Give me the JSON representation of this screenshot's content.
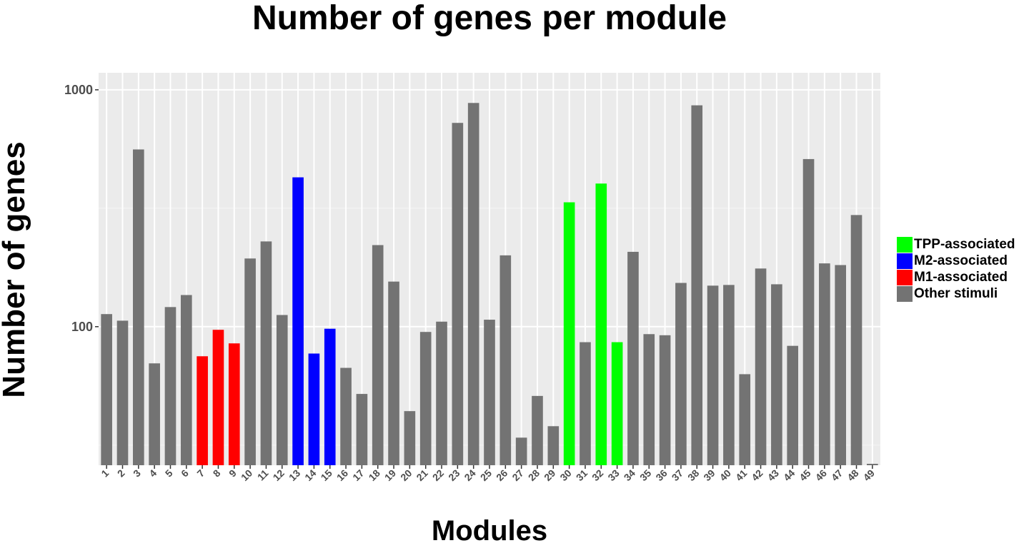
{
  "chart_data": {
    "type": "bar",
    "title": "Number of genes per module",
    "xlabel": "Modules",
    "ylabel": "Number of genes",
    "y_scale": "log10",
    "ylim": [
      26,
      1180
    ],
    "y_ticks": [
      100,
      1000
    ],
    "y_tick_labels": [
      "100",
      "1000"
    ],
    "grid": true,
    "legend_position": "right",
    "categories": [
      "1",
      "2",
      "3",
      "4",
      "5",
      "6",
      "7",
      "8",
      "9",
      "10",
      "11",
      "12",
      "13",
      "14",
      "15",
      "16",
      "17",
      "18",
      "19",
      "20",
      "21",
      "22",
      "23",
      "24",
      "25",
      "26",
      "27",
      "28",
      "29",
      "30",
      "31",
      "32",
      "33",
      "34",
      "35",
      "36",
      "37",
      "38",
      "39",
      "40",
      "41",
      "42",
      "43",
      "44",
      "45",
      "46",
      "47",
      "48",
      "49"
    ],
    "values": [
      113,
      106,
      560,
      70,
      121,
      136,
      75,
      97,
      85,
      194,
      229,
      112,
      427,
      77,
      98,
      67,
      52,
      221,
      155,
      44,
      95,
      105,
      725,
      880,
      107,
      200,
      34,
      51,
      38,
      335,
      86,
      402,
      86,
      207,
      93,
      92,
      153,
      860,
      149,
      150,
      63,
      176,
      151,
      83,
      510,
      185,
      182,
      296,
      26
    ],
    "groups": [
      "Other stimuli",
      "Other stimuli",
      "Other stimuli",
      "Other stimuli",
      "Other stimuli",
      "Other stimuli",
      "M1-associated",
      "M1-associated",
      "M1-associated",
      "Other stimuli",
      "Other stimuli",
      "Other stimuli",
      "M2-associated",
      "M2-associated",
      "M2-associated",
      "Other stimuli",
      "Other stimuli",
      "Other stimuli",
      "Other stimuli",
      "Other stimuli",
      "Other stimuli",
      "Other stimuli",
      "Other stimuli",
      "Other stimuli",
      "Other stimuli",
      "Other stimuli",
      "Other stimuli",
      "Other stimuli",
      "Other stimuli",
      "TPP-associated",
      "Other stimuli",
      "TPP-associated",
      "TPP-associated",
      "Other stimuli",
      "Other stimuli",
      "Other stimuli",
      "Other stimuli",
      "Other stimuli",
      "Other stimuli",
      "Other stimuli",
      "Other stimuli",
      "Other stimuli",
      "Other stimuli",
      "Other stimuli",
      "Other stimuli",
      "Other stimuli",
      "Other stimuli",
      "Other stimuli",
      "Other stimuli"
    ],
    "legend": [
      {
        "label": "TPP-associated",
        "color": "#00ff00"
      },
      {
        "label": "M2-associated",
        "color": "#0000ff"
      },
      {
        "label": "M1-associated",
        "color": "#ff0000"
      },
      {
        "label": "Other stimuli",
        "color": "#737373"
      }
    ],
    "colors": {
      "panel_background": "#ebebeb",
      "grid_major": "#ffffff",
      "grid_minor": "#f5f5f5",
      "tick_text": "#4d4d4d"
    }
  }
}
